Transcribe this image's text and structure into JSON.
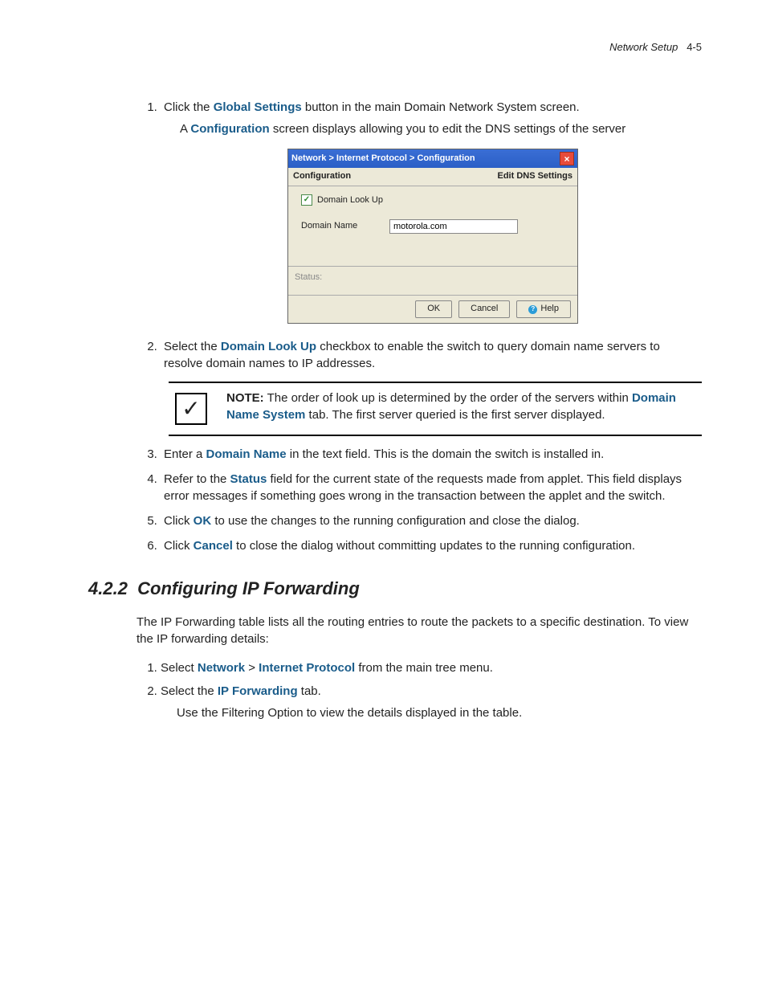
{
  "header": {
    "title": "Network Setup",
    "page": "4-5"
  },
  "steps": {
    "s1": {
      "pre": "Click the ",
      "bold": "Global Settings",
      "post": " button in the main Domain Network System screen.",
      "sub_pre": "A ",
      "sub_bold": "Configuration",
      "sub_post": " screen displays allowing you to edit the DNS settings of the server"
    },
    "s2": {
      "pre": "Select the ",
      "bold": "Domain Look Up",
      "post": " checkbox to enable the switch to query domain name servers to resolve domain names to IP addresses."
    },
    "s3": {
      "pre": "Enter a ",
      "bold": "Domain Name",
      "post": " in the text field. This is the domain the switch is installed in."
    },
    "s4": {
      "pre": "Refer to the ",
      "bold": "Status",
      "post": " field for the current state of the requests made from applet. This field displays error messages if something goes wrong in the transaction between the applet and the switch."
    },
    "s5": {
      "pre": "Click ",
      "bold": "OK",
      "post": " to use the changes to the running configuration and close the dialog."
    },
    "s6": {
      "pre": "Click ",
      "bold": "Cancel",
      "post": " to close the dialog without committing updates to the running configuration."
    }
  },
  "dialog": {
    "breadcrumb": "Network > Internet Protocol > Configuration",
    "subhead_left": "Configuration",
    "subhead_right": "Edit DNS Settings",
    "checkbox_label": "Domain Look Up",
    "domain_label": "Domain Name",
    "domain_value": "motorola.com",
    "status_label": "Status:",
    "btn_ok": "OK",
    "btn_cancel": "Cancel",
    "btn_help": "Help"
  },
  "note": {
    "label": "NOTE:",
    "text1": " The order of look up is determined by the order of the servers within ",
    "bold": "Domain Name System",
    "text2": " tab. The first server queried is the first server displayed."
  },
  "section": {
    "number": "4.2.2",
    "title": "Configuring IP Forwarding",
    "intro": "The IP Forwarding table lists all the routing entries to route the packets to a specific destination. To view the IP forwarding details:",
    "step1_pre": "Select ",
    "step1_b1": "Network",
    "step1_mid": " > ",
    "step1_b2": "Internet Protocol",
    "step1_post": " from the main tree menu.",
    "step2_pre": "Select the ",
    "step2_bold": "IP Forwarding",
    "step2_post": " tab.",
    "step2_sub": "Use the Filtering Option to view the details displayed in the table."
  }
}
